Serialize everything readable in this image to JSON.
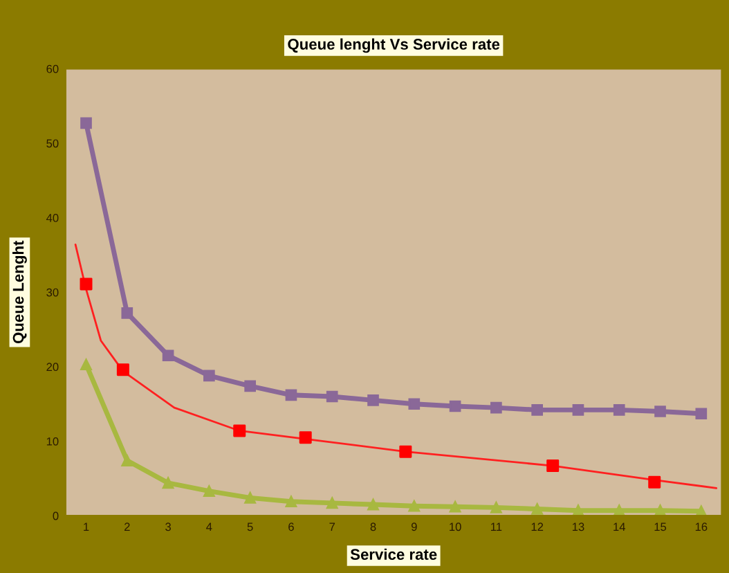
{
  "chart_data": {
    "type": "line",
    "title": "Queue lenght Vs Service rate",
    "xlabel": "Service rate",
    "ylabel": "Queue Lenght",
    "xlim": [
      0.5,
      16.5
    ],
    "xticks": [
      1,
      2,
      3,
      4,
      5,
      6,
      7,
      8,
      9,
      10,
      11,
      12,
      13,
      14,
      15,
      16
    ],
    "ylim": [
      0,
      60
    ],
    "yticks": [
      0,
      10,
      20,
      30,
      40,
      50,
      60
    ],
    "grid": false,
    "legend": false,
    "series": [
      {
        "color": "#8a6898",
        "marker": "square",
        "x": [
          1,
          2,
          3,
          4,
          5,
          6,
          7,
          8,
          9,
          10,
          11,
          12,
          13,
          14,
          15,
          16
        ],
        "values": [
          52.7,
          27.2,
          21.5,
          18.8,
          17.4,
          16.2,
          16.0,
          15.5,
          15.0,
          14.7,
          14.5,
          14.2,
          14.2,
          14.2,
          14.0,
          13.7
        ]
      },
      {
        "color": "#a8b840",
        "marker": "triangle",
        "x": [
          1,
          2,
          3,
          4,
          5,
          6,
          7,
          8,
          9,
          10,
          11,
          12,
          13,
          14,
          15,
          16
        ],
        "values": [
          20.3,
          7.4,
          4.4,
          3.3,
          2.4,
          1.9,
          1.7,
          1.5,
          1.3,
          1.2,
          1.1,
          0.9,
          0.7,
          0.7,
          0.7,
          0.6
        ]
      },
      {
        "type": "scatter",
        "color": "#ff0000",
        "marker": "square",
        "x": [
          1,
          1.9,
          4.74,
          6.35,
          8.79,
          12.38,
          14.86
        ],
        "values": [
          31.1,
          19.6,
          11.4,
          10.5,
          8.6,
          6.7,
          4.5
        ]
      },
      {
        "type": "line",
        "color": "#ff2020",
        "marker": "none",
        "x": [
          0.74,
          1.0,
          1.36,
          1.9,
          3.15,
          4.74,
          6.35,
          8.79,
          12.38,
          14.86,
          16.37
        ],
        "values": [
          36.4,
          30.4,
          23.5,
          19.4,
          14.5,
          11.4,
          10.3,
          8.6,
          6.7,
          4.8,
          3.7
        ]
      }
    ]
  }
}
